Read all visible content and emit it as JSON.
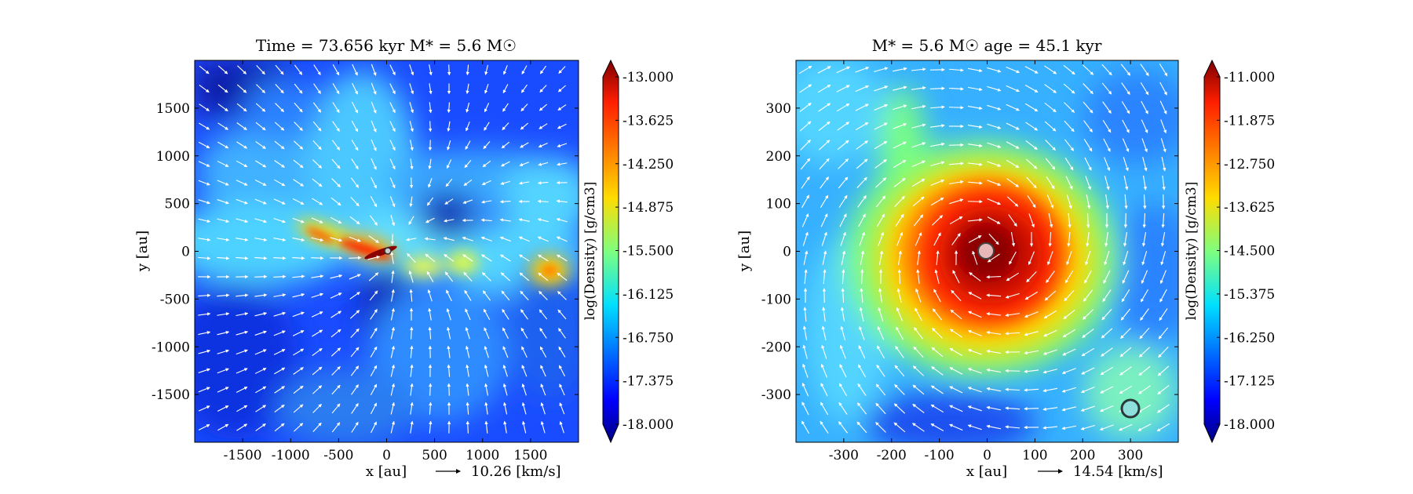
{
  "chart_data": [
    {
      "type": "heatmap",
      "title": "Time = 73.656 kyr    M* = 5.6 M☉",
      "xlabel": "x [au]",
      "ylabel": "y [au]",
      "xlim": [
        -2000,
        2000
      ],
      "ylim": [
        -2000,
        2000
      ],
      "xticks": [
        -1500,
        -1000,
        -500,
        0,
        500,
        1000,
        1500
      ],
      "yticks": [
        -1500,
        -1000,
        -500,
        0,
        500,
        1000,
        1500
      ],
      "colorbar": {
        "label": "log(Density) [g/cm3]",
        "range": [
          -18.0,
          -13.0
        ],
        "ticks": [
          "-13.000",
          "-13.625",
          "-14.250",
          "-14.875",
          "-15.500",
          "-16.125",
          "-16.750",
          "-17.375",
          "-18.000"
        ]
      },
      "velocity_key": "10.26 [km/s]",
      "colormap": "jet",
      "features": [
        {
          "kind": "filament",
          "x": [
            -800,
            250
          ],
          "y": [
            180,
            -60
          ],
          "log_density": -13.2
        },
        {
          "kind": "cavity",
          "x": 600,
          "y": 350,
          "log_density": -17.9
        },
        {
          "kind": "cavity",
          "x": 0,
          "y": -700,
          "log_density": -17.7
        },
        {
          "kind": "clump",
          "x": 1750,
          "y": -200,
          "log_density": -14.6
        },
        {
          "kind": "clump",
          "x": 800,
          "y": -100,
          "log_density": -14.5
        }
      ],
      "sinks": [
        {
          "x": 0,
          "y": 0,
          "fill": "#cccccc"
        }
      ]
    },
    {
      "type": "heatmap",
      "title": "M* = 5.6 M☉        age = 45.1 kyr",
      "xlabel": "x [au]",
      "ylabel": "y [au]",
      "xlim": [
        -400,
        400
      ],
      "ylim": [
        -400,
        400
      ],
      "xticks": [
        -300,
        -200,
        -100,
        0,
        100,
        200,
        300
      ],
      "yticks": [
        -300,
        -200,
        -100,
        0,
        100,
        200,
        300
      ],
      "colorbar": {
        "label": "log(Density) [g/cm3]",
        "range": [
          -18.0,
          -11.0
        ],
        "ticks": [
          "-11.000",
          "-11.875",
          "-12.750",
          "-13.625",
          "-14.500",
          "-15.375",
          "-16.250",
          "-17.125",
          "-18.000"
        ]
      },
      "velocity_key": "14.54 [km/s]",
      "colormap": "jet",
      "features": [
        {
          "kind": "envelope",
          "x": 0,
          "y": 0,
          "log_density": -11.3
        },
        {
          "kind": "clump",
          "x": 310,
          "y": -310,
          "log_density": -15.1
        }
      ],
      "sinks": [
        {
          "x": 0,
          "y": 0,
          "fill": "#e8b8b8"
        },
        {
          "x": 290,
          "y": -330,
          "fill": "#8fe0dc"
        }
      ]
    }
  ],
  "colors": {
    "jet_low": "#00007f",
    "jet_high": "#7f0000",
    "arrow": "#ffffff",
    "axis": "#000000"
  }
}
